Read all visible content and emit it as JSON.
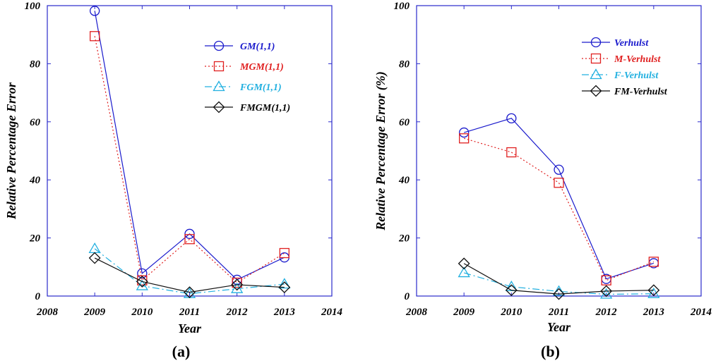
{
  "chart_data": [
    {
      "type": "line",
      "panel_label": "(a)",
      "panel_label_parts": [
        "(",
        "a",
        ")"
      ],
      "xlabel": "Year",
      "ylabel": "Relative Percentage Error",
      "xlim": [
        2008,
        2014
      ],
      "ylim": [
        0,
        100
      ],
      "xticks": [
        2008,
        2009,
        2010,
        2011,
        2012,
        2013,
        2014
      ],
      "yticks": [
        0,
        20,
        40,
        60,
        80,
        100
      ],
      "legend_position": "top-right",
      "x": [
        2009,
        2010,
        2011,
        2012,
        2013
      ],
      "series": [
        {
          "name": "GM(1,1)",
          "color": "#1a1acc",
          "marker": "circle",
          "dash": "solid",
          "values": [
            98.2,
            7.8,
            21.4,
            5.6,
            13.3
          ]
        },
        {
          "name": "MGM(1,1)",
          "color": "#e02020",
          "marker": "square",
          "dash": "dotted",
          "values": [
            89.5,
            5.4,
            19.6,
            4.6,
            14.8
          ]
        },
        {
          "name": "FGM(1,1)",
          "color": "#22b0e0",
          "marker": "triangle",
          "dash": "dashdot",
          "values": [
            16.3,
            3.5,
            0.8,
            2.5,
            4.1
          ]
        },
        {
          "name": "FMGM(1,1)",
          "color": "#111111",
          "marker": "diamond",
          "dash": "solid",
          "values": [
            13.1,
            5.0,
            1.3,
            3.9,
            3.0
          ]
        }
      ]
    },
    {
      "type": "line",
      "panel_label": "(b)",
      "panel_label_parts": [
        "(",
        "b",
        ")"
      ],
      "xlabel": "Year",
      "ylabel": "Relative Percentage Error (%)",
      "xlim": [
        2008,
        2014
      ],
      "ylim": [
        0,
        100
      ],
      "xticks": [
        2008,
        2009,
        2010,
        2011,
        2012,
        2013,
        2014
      ],
      "yticks": [
        0,
        20,
        40,
        60,
        80,
        100
      ],
      "legend_position": "top-right",
      "x": [
        2009,
        2010,
        2011,
        2012,
        2013
      ],
      "series": [
        {
          "name": "Verhulst",
          "color": "#1a1acc",
          "marker": "circle",
          "dash": "solid",
          "values": [
            56.3,
            61.2,
            43.5,
            5.9,
            11.3
          ]
        },
        {
          "name": "M-Verhulst",
          "color": "#e02020",
          "marker": "square",
          "dash": "dotted",
          "values": [
            54.3,
            49.5,
            39.0,
            5.4,
            11.8
          ]
        },
        {
          "name": "F-Verhulst",
          "color": "#22b0e0",
          "marker": "triangle",
          "dash": "dashdot",
          "values": [
            8.0,
            3.2,
            1.6,
            0.6,
            0.8
          ]
        },
        {
          "name": "FM-Verhulst",
          "color": "#111111",
          "marker": "diamond",
          "dash": "solid",
          "values": [
            11.2,
            2.0,
            0.7,
            1.7,
            2.0
          ]
        }
      ]
    }
  ]
}
